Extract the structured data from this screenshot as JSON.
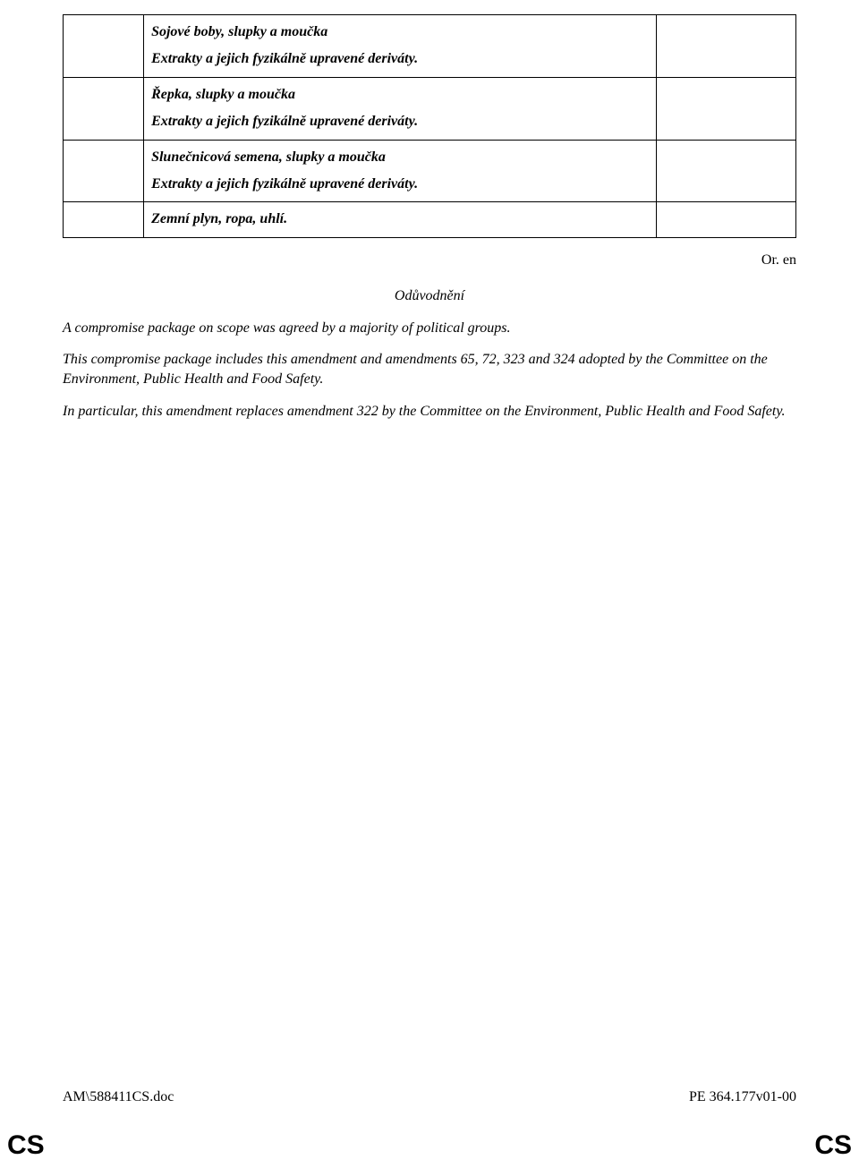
{
  "table": {
    "rows": [
      {
        "line1": "Sojové boby, slupky a moučka",
        "line2": "Extrakty a jejich fyzikálně upravené deriváty."
      },
      {
        "line1": "Řepka, slupky a moučka",
        "line2": "Extrakty a jejich fyzikálně upravené deriváty."
      },
      {
        "line1": "Slunečnicová semena, slupky a moučka",
        "line2": "Extrakty a jejich fyzikálně upravené deriváty."
      },
      {
        "line1": "Zemní plyn, ropa, uhlí.",
        "line2": ""
      }
    ]
  },
  "or_en": "Or. en",
  "justification": {
    "heading": "Odůvodnění",
    "p1": "A compromise package on scope was agreed by a majority of political groups.",
    "p2": "This compromise package includes this amendment and amendments 65, 72, 323 and 324 adopted by the Committee on the Environment, Public Health and Food Safety.",
    "p3": "In particular, this amendment replaces amendment 322 by the Committee on the Environment, Public Health and Food Safety."
  },
  "footer": {
    "left": "AM\\588411CS.doc",
    "right": "PE 364.177v01-00"
  },
  "cs_mark": "CS"
}
